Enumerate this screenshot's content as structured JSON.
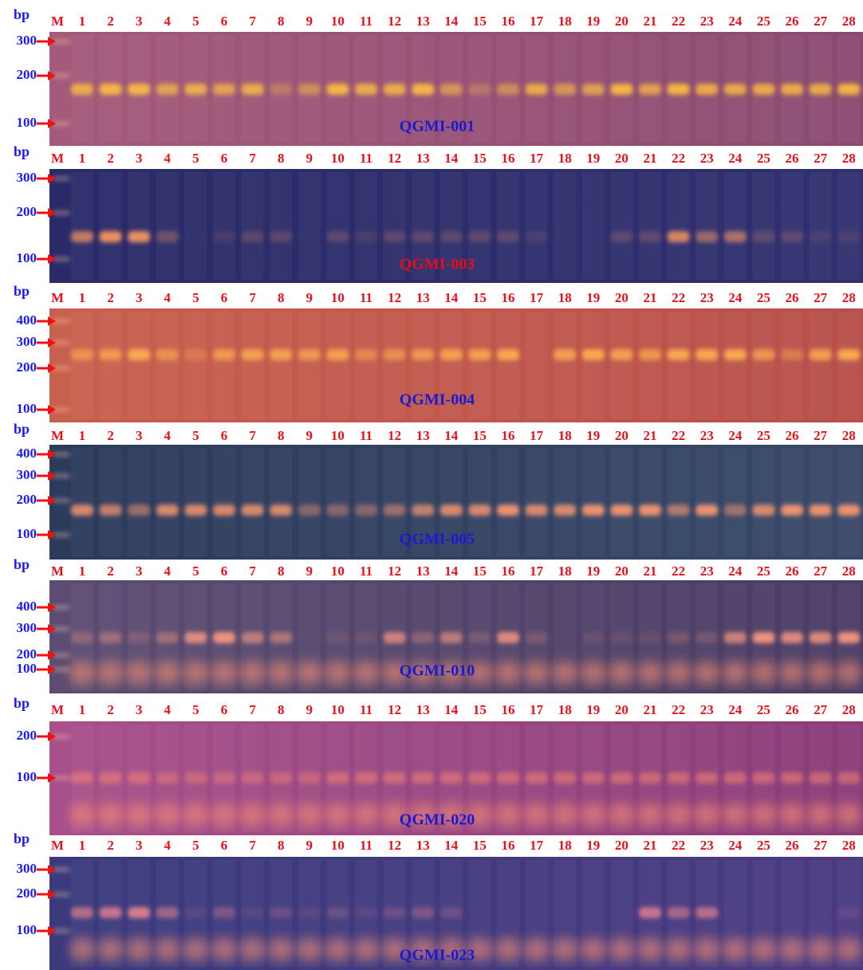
{
  "panels": [
    {
      "unit": "bp",
      "marker_lane": "M",
      "lanes": [
        "1",
        "2",
        "3",
        "4",
        "5",
        "6",
        "7",
        "8",
        "9",
        "10",
        "11",
        "12",
        "13",
        "14",
        "15",
        "16",
        "17",
        "18",
        "19",
        "20",
        "21",
        "22",
        "23",
        "24",
        "25",
        "26",
        "27",
        "28"
      ],
      "ladder": [
        "300",
        "200",
        "100"
      ],
      "name": "QGMI-001"
    },
    {
      "unit": "bp",
      "marker_lane": "M",
      "lanes": [
        "1",
        "2",
        "3",
        "4",
        "5",
        "6",
        "7",
        "8",
        "9",
        "10",
        "11",
        "12",
        "13",
        "14",
        "15",
        "16",
        "17",
        "18",
        "19",
        "20",
        "21",
        "22",
        "23",
        "24",
        "25",
        "26",
        "27",
        "28"
      ],
      "ladder": [
        "300",
        "200",
        "100"
      ],
      "name": "QGMI-003"
    },
    {
      "unit": "bp",
      "marker_lane": "M",
      "lanes": [
        "1",
        "2",
        "3",
        "4",
        "5",
        "6",
        "7",
        "8",
        "9",
        "10",
        "11",
        "12",
        "13",
        "14",
        "15",
        "16",
        "17",
        "18",
        "19",
        "20",
        "21",
        "22",
        "23",
        "24",
        "25",
        "26",
        "27",
        "28"
      ],
      "ladder": [
        "400",
        "300",
        "200",
        "100"
      ],
      "name": "QGMI-004"
    },
    {
      "unit": "bp",
      "marker_lane": "M",
      "lanes": [
        "1",
        "2",
        "3",
        "4",
        "5",
        "6",
        "7",
        "8",
        "9",
        "10",
        "11",
        "12",
        "13",
        "14",
        "15",
        "16",
        "17",
        "18",
        "19",
        "20",
        "21",
        "22",
        "23",
        "24",
        "25",
        "26",
        "27",
        "28"
      ],
      "ladder": [
        "400",
        "300",
        "200",
        "100"
      ],
      "name": "QGMI-005"
    },
    {
      "unit": "bp",
      "marker_lane": "M",
      "lanes": [
        "1",
        "2",
        "3",
        "4",
        "5",
        "6",
        "7",
        "8",
        "9",
        "10",
        "11",
        "12",
        "13",
        "14",
        "15",
        "16",
        "17",
        "18",
        "19",
        "20",
        "21",
        "22",
        "23",
        "24",
        "25",
        "26",
        "27",
        "28"
      ],
      "ladder": [
        "400",
        "300",
        "200",
        "100"
      ],
      "name": "QGMI-010"
    },
    {
      "unit": "bp",
      "marker_lane": "M",
      "lanes": [
        "1",
        "2",
        "3",
        "4",
        "5",
        "6",
        "7",
        "8",
        "9",
        "10",
        "11",
        "12",
        "13",
        "14",
        "15",
        "16",
        "17",
        "18",
        "19",
        "20",
        "21",
        "22",
        "23",
        "24",
        "25",
        "26",
        "27",
        "28"
      ],
      "ladder": [
        "200",
        "100"
      ],
      "name": "QGMI-020"
    },
    {
      "unit": "bp",
      "marker_lane": "M",
      "lanes": [
        "1",
        "2",
        "3",
        "4",
        "5",
        "6",
        "7",
        "8",
        "9",
        "10",
        "11",
        "12",
        "13",
        "14",
        "15",
        "16",
        "17",
        "18",
        "19",
        "20",
        "21",
        "22",
        "23",
        "24",
        "25",
        "26",
        "27",
        "28"
      ],
      "ladder": [
        "300",
        "200",
        "100"
      ],
      "name": "QGMI-023"
    }
  ]
}
